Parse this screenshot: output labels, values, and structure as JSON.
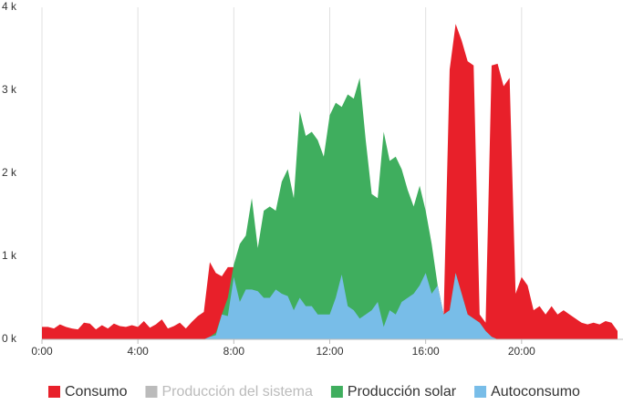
{
  "chart_data": {
    "type": "area",
    "x": [
      0,
      0.25,
      0.5,
      0.75,
      1,
      1.25,
      1.5,
      1.75,
      2,
      2.25,
      2.5,
      2.75,
      3,
      3.25,
      3.5,
      3.75,
      4,
      4.25,
      4.5,
      4.75,
      5,
      5.25,
      5.5,
      5.75,
      6,
      6.25,
      6.5,
      6.75,
      7,
      7.25,
      7.5,
      7.75,
      8,
      8.25,
      8.5,
      8.75,
      9,
      9.25,
      9.5,
      9.75,
      10,
      10.25,
      10.5,
      10.75,
      11,
      11.25,
      11.5,
      11.75,
      12,
      12.25,
      12.5,
      12.75,
      13,
      13.25,
      13.5,
      13.75,
      14,
      14.25,
      14.5,
      14.75,
      15,
      15.25,
      15.5,
      15.75,
      16,
      16.25,
      16.5,
      16.75,
      17,
      17.25,
      17.5,
      17.75,
      18,
      18.25,
      18.5,
      18.75,
      19,
      19.25,
      19.5,
      19.75,
      20,
      20.25,
      20.5,
      20.75,
      21,
      21.25,
      21.5,
      21.75,
      22,
      22.25,
      22.5,
      22.75,
      23,
      23.25,
      23.5,
      23.75,
      24
    ],
    "series": [
      {
        "name": "Consumo",
        "color": "#e8202a",
        "values": [
          150,
          150,
          130,
          180,
          150,
          130,
          120,
          200,
          190,
          120,
          170,
          130,
          190,
          160,
          150,
          170,
          150,
          220,
          140,
          180,
          240,
          130,
          160,
          200,
          130,
          210,
          280,
          330,
          930,
          800,
          760,
          870,
          870,
          450,
          600,
          600,
          580,
          500,
          500,
          600,
          550,
          520,
          350,
          500,
          400,
          400,
          300,
          300,
          300,
          500,
          780,
          400,
          350,
          250,
          300,
          350,
          450,
          150,
          350,
          300,
          450,
          500,
          550,
          650,
          800,
          550,
          650,
          300,
          3250,
          3800,
          3600,
          3350,
          3300,
          300,
          200,
          3300,
          3320,
          3050,
          3150,
          550,
          750,
          650,
          350,
          400,
          300,
          400,
          300,
          350,
          300,
          250,
          200,
          180,
          200,
          180,
          220,
          200,
          100
        ]
      },
      {
        "name": "Producción del sistema",
        "color": "#bbbbbb",
        "visible": false
      },
      {
        "name": "Producción solar",
        "color": "#3fae5e",
        "values": [
          0,
          0,
          0,
          0,
          0,
          0,
          0,
          0,
          0,
          0,
          0,
          0,
          0,
          0,
          0,
          0,
          0,
          0,
          0,
          0,
          0,
          0,
          0,
          0,
          0,
          0,
          0,
          0,
          30,
          80,
          300,
          500,
          900,
          1150,
          1250,
          1700,
          1100,
          1550,
          1600,
          1550,
          1900,
          2050,
          1700,
          2750,
          2450,
          2500,
          2400,
          2200,
          2700,
          2850,
          2800,
          2950,
          2900,
          3150,
          2400,
          1750,
          1700,
          2500,
          2150,
          2200,
          2050,
          1800,
          1600,
          1850,
          1550,
          1150,
          650,
          300,
          350,
          800,
          550,
          300,
          250,
          200,
          100,
          30,
          0,
          0,
          0,
          0,
          0,
          0,
          0,
          0,
          0,
          0,
          0,
          0,
          0,
          0,
          0,
          0,
          0,
          0,
          0,
          0,
          0
        ]
      },
      {
        "name": "Autoconsumo",
        "color": "#78bde8",
        "values": [
          0,
          0,
          0,
          0,
          0,
          0,
          0,
          0,
          0,
          0,
          0,
          0,
          0,
          0,
          0,
          0,
          0,
          0,
          0,
          0,
          0,
          0,
          0,
          0,
          0,
          0,
          0,
          0,
          30,
          50,
          300,
          280,
          750,
          450,
          600,
          600,
          580,
          500,
          500,
          600,
          550,
          520,
          350,
          500,
          400,
          400,
          300,
          300,
          300,
          500,
          780,
          400,
          350,
          250,
          300,
          350,
          450,
          150,
          350,
          300,
          450,
          500,
          550,
          650,
          800,
          550,
          650,
          300,
          350,
          800,
          550,
          300,
          250,
          200,
          100,
          30,
          0,
          0,
          0,
          0,
          0,
          0,
          0,
          0,
          0,
          0,
          0,
          0,
          0,
          0,
          0,
          0,
          0,
          0,
          0,
          0,
          0
        ]
      }
    ],
    "xlim": [
      0,
      24
    ],
    "xticks": [
      {
        "value": 0,
        "label": "0:00"
      },
      {
        "value": 4,
        "label": "4:00"
      },
      {
        "value": 8,
        "label": "8:00"
      },
      {
        "value": 12,
        "label": "12:00"
      },
      {
        "value": 16,
        "label": "16:00"
      },
      {
        "value": 20,
        "label": "20:00"
      }
    ],
    "ylim": [
      0,
      4000
    ],
    "yticks": [
      {
        "value": 0,
        "label": "0 k"
      },
      {
        "value": 1000,
        "label": "1 k"
      },
      {
        "value": 2000,
        "label": "2 k"
      },
      {
        "value": 3000,
        "label": "3 k"
      },
      {
        "value": 4000,
        "label": "4 k"
      }
    ],
    "grid": true,
    "legend": "bottom"
  }
}
